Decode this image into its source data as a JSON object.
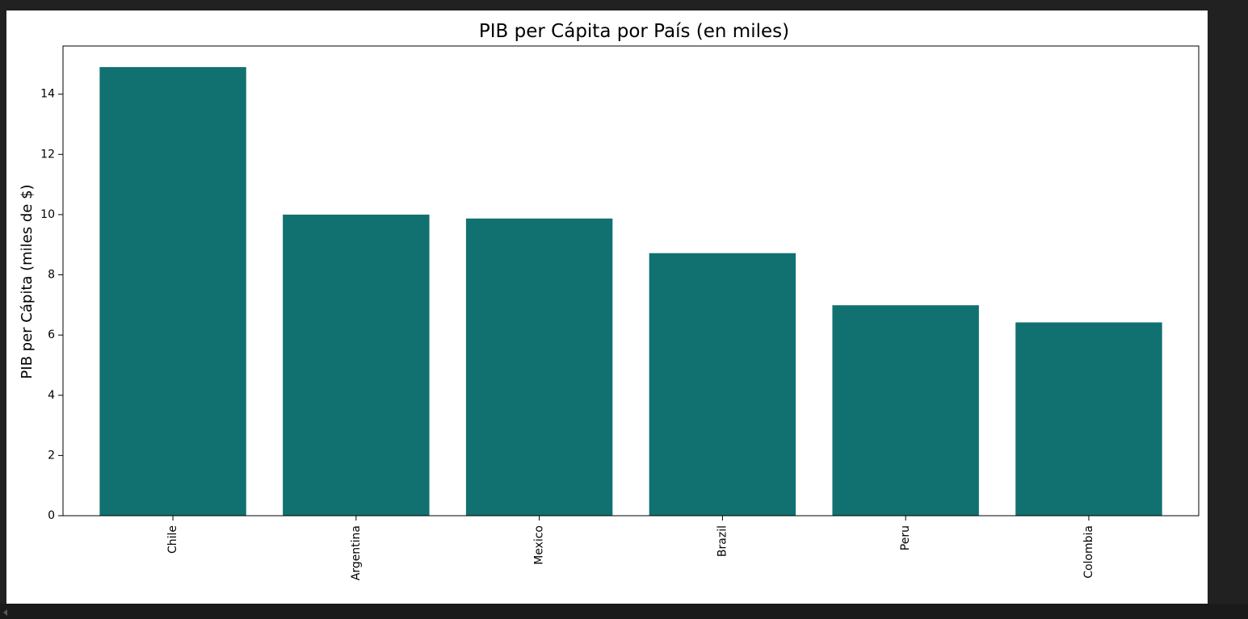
{
  "chart_data": {
    "type": "bar",
    "title": "PIB per Cápita por País (en miles)",
    "xlabel": "",
    "ylabel": "PIB per Cápita (miles de $)",
    "categories": [
      "Chile",
      "Argentina",
      "Mexico",
      "Brazil",
      "Peru",
      "Colombia"
    ],
    "values": [
      14.9,
      10.0,
      9.87,
      8.72,
      6.99,
      6.42
    ],
    "ylim": [
      0,
      15.6
    ],
    "yticks": [
      0,
      2,
      4,
      6,
      8,
      10,
      12,
      14
    ],
    "bar_color": "#117170",
    "grid": false,
    "legend": "none"
  },
  "colors": {
    "background": "#212121",
    "figure": "#ffffff",
    "bar": "#117170"
  }
}
